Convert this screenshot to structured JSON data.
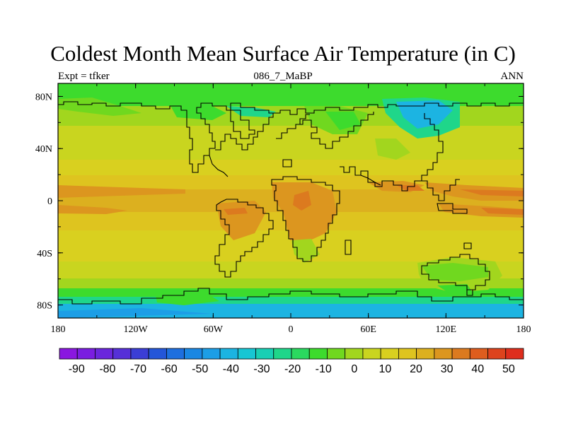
{
  "chart_data": {
    "type": "heatmap",
    "title": "Coldest Month Mean Surface Air Temperature (in C)",
    "subtitle_left": "Expt = tfker",
    "subtitle_center": "086_7_MaBP",
    "subtitle_right": "ANN",
    "x_ticks": [
      "180",
      "120W",
      "60W",
      "0",
      "60E",
      "120E",
      "180"
    ],
    "y_ticks": [
      "80N",
      "40N",
      "0",
      "40S",
      "80S"
    ],
    "xlim": [
      -180,
      180
    ],
    "ylim": [
      -90,
      90
    ],
    "colorbar": {
      "labels": [
        "-90",
        "-80",
        "-70",
        "-60",
        "-50",
        "-40",
        "-30",
        "-20",
        "-10",
        "0",
        "10",
        "20",
        "30",
        "40",
        "50"
      ],
      "colors": [
        "#8a17e0",
        "#7a1de0",
        "#6a26dc",
        "#5630d8",
        "#3b3ed6",
        "#2456d9",
        "#1e6fdf",
        "#1a87e3",
        "#1c9ee6",
        "#1cb4e2",
        "#17c6d4",
        "#19cfb4",
        "#1fd68a",
        "#2ad95f",
        "#3ddb2d",
        "#70d81f",
        "#a2d61e",
        "#c9d51f",
        "#d9d01f",
        "#dec41f",
        "#dcb01f",
        "#dc961f",
        "#dc7a1f",
        "#de5d1e",
        "#dd431d",
        "#de2e1d"
      ]
    },
    "zonal_bands": [
      {
        "lat_from": 90,
        "lat_to": 76,
        "temp_band": "0 to 10"
      },
      {
        "lat_from": 76,
        "lat_to": 56,
        "temp_band": "10 to 20"
      },
      {
        "lat_from": 56,
        "lat_to": 30,
        "temp_band": "20 to 25"
      },
      {
        "lat_from": 30,
        "lat_to": 8,
        "temp_band": "25 to 35"
      },
      {
        "lat_from": 8,
        "lat_to": -8,
        "temp_band": "30 to 45"
      },
      {
        "lat_from": -8,
        "lat_to": -28,
        "temp_band": "25 to 35"
      },
      {
        "lat_from": -28,
        "lat_to": -52,
        "temp_band": "20 to 25"
      },
      {
        "lat_from": -52,
        "lat_to": -66,
        "temp_band": "10 to 20"
      },
      {
        "lat_from": -66,
        "lat_to": -76,
        "temp_band": "0 to 10"
      },
      {
        "lat_from": -76,
        "lat_to": -90,
        "temp_band": "-10 to 0"
      }
    ]
  }
}
